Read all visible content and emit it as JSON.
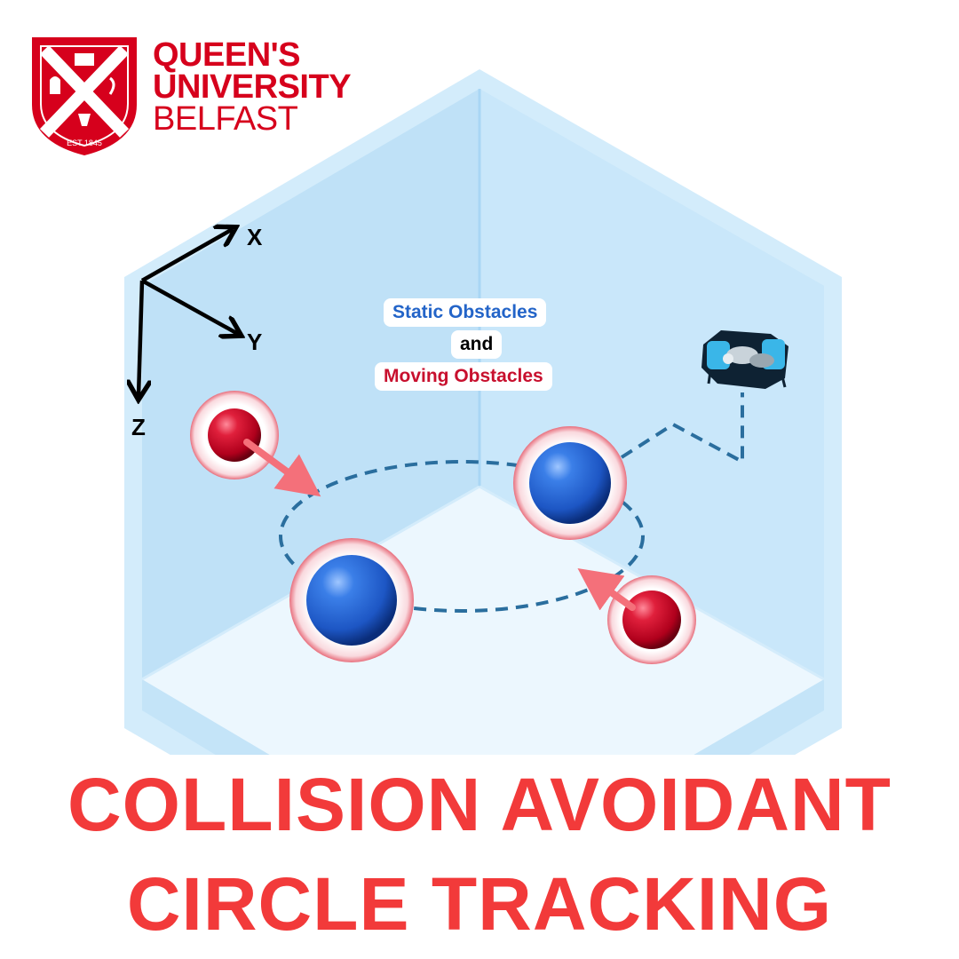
{
  "logo": {
    "line1": "QUEEN'S",
    "line2": "UNIVERSITY",
    "line3": "BELFAST",
    "est": "EST 1845",
    "color": "#d6001c"
  },
  "axes": {
    "x": "X",
    "y": "Y",
    "z": "Z"
  },
  "labels": {
    "static": "Static Obstacles",
    "and": "and",
    "moving": "Moving Obstacles",
    "static_color": "#2364c8",
    "moving_color": "#c8102e"
  },
  "title": {
    "line1": "COLLISION AVOIDANT",
    "line2": "CIRCLE TRACKING",
    "color": "#f23a3a"
  },
  "colors": {
    "tank_back": "#c4e4f8",
    "tank_floor": "#e9f5fd",
    "path": "#2a6e9e",
    "static_sphere": "#1f5fd1",
    "moving_sphere": "#c8102e",
    "halo": "#fbe3e7"
  },
  "icons": [
    "shield-crest-icon",
    "underwater-robot-icon"
  ]
}
